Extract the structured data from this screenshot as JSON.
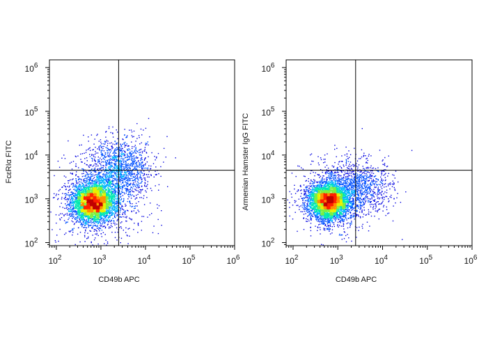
{
  "chart_data": [
    {
      "type": "scatter",
      "subtype": "flow-cytometry-density-dot-plot",
      "xlabel": "CD49b APC",
      "ylabel": "FcεRIα FITC",
      "x_scale": "log",
      "y_scale": "log",
      "xlim": [
        70,
        1000000
      ],
      "ylim": [
        85,
        1500000
      ],
      "x_ticks": [
        {
          "label": "10",
          "exp": "2",
          "value": 100
        },
        {
          "label": "10",
          "exp": "3",
          "value": 1000
        },
        {
          "label": "10",
          "exp": "4",
          "value": 10000
        },
        {
          "label": "10",
          "exp": "5",
          "value": 100000
        },
        {
          "label": "10",
          "exp": "6",
          "value": 1000000
        }
      ],
      "y_ticks": [
        {
          "label": "10",
          "exp": "2",
          "value": 100
        },
        {
          "label": "10",
          "exp": "3",
          "value": 1000
        },
        {
          "label": "10",
          "exp": "4",
          "value": 10000
        },
        {
          "label": "10",
          "exp": "5",
          "value": 100000
        },
        {
          "label": "10",
          "exp": "6",
          "value": 1000000
        }
      ],
      "quadrant_gates": {
        "x": 2500,
        "y": 4500
      },
      "populations": [
        {
          "center": [
            680,
            850
          ],
          "spread_log10": [
            0.24,
            0.22
          ],
          "events": 4200
        },
        {
          "center": [
            2600,
            5000
          ],
          "spread_log10": [
            0.36,
            0.36
          ],
          "events": 1300
        },
        {
          "center": [
            900,
            1000
          ],
          "spread_log10": [
            0.5,
            0.5
          ],
          "events": 900
        }
      ],
      "colormap": [
        "#0000e0",
        "#0050ff",
        "#00b4ff",
        "#00e8b0",
        "#7cf040",
        "#e8f000",
        "#ff9000",
        "#ff2000",
        "#c00000"
      ]
    },
    {
      "type": "scatter",
      "subtype": "flow-cytometry-density-dot-plot",
      "xlabel": "CD49b APC",
      "ylabel": "Armenian Hamster IgG FITC",
      "x_scale": "log",
      "y_scale": "log",
      "xlim": [
        70,
        1000000
      ],
      "ylim": [
        85,
        1500000
      ],
      "x_ticks": [
        {
          "label": "10",
          "exp": "2",
          "value": 100
        },
        {
          "label": "10",
          "exp": "3",
          "value": 1000
        },
        {
          "label": "10",
          "exp": "4",
          "value": 10000
        },
        {
          "label": "10",
          "exp": "5",
          "value": 100000
        },
        {
          "label": "10",
          "exp": "6",
          "value": 1000000
        }
      ],
      "y_ticks": [
        {
          "label": "10",
          "exp": "2",
          "value": 100
        },
        {
          "label": "10",
          "exp": "3",
          "value": 1000
        },
        {
          "label": "10",
          "exp": "4",
          "value": 10000
        },
        {
          "label": "10",
          "exp": "5",
          "value": 100000
        },
        {
          "label": "10",
          "exp": "6",
          "value": 1000000
        }
      ],
      "quadrant_gates": {
        "x": 2500,
        "y": 4500
      },
      "populations": [
        {
          "center": [
            600,
            900
          ],
          "spread_log10": [
            0.22,
            0.21
          ],
          "events": 4200
        },
        {
          "center": [
            3000,
            2000
          ],
          "spread_log10": [
            0.35,
            0.32
          ],
          "events": 900
        },
        {
          "center": [
            900,
            1200
          ],
          "spread_log10": [
            0.45,
            0.45
          ],
          "events": 700
        }
      ],
      "colormap": [
        "#0000e0",
        "#0050ff",
        "#00b4ff",
        "#00e8b0",
        "#7cf040",
        "#e8f000",
        "#ff9000",
        "#ff2000",
        "#c00000"
      ]
    }
  ]
}
